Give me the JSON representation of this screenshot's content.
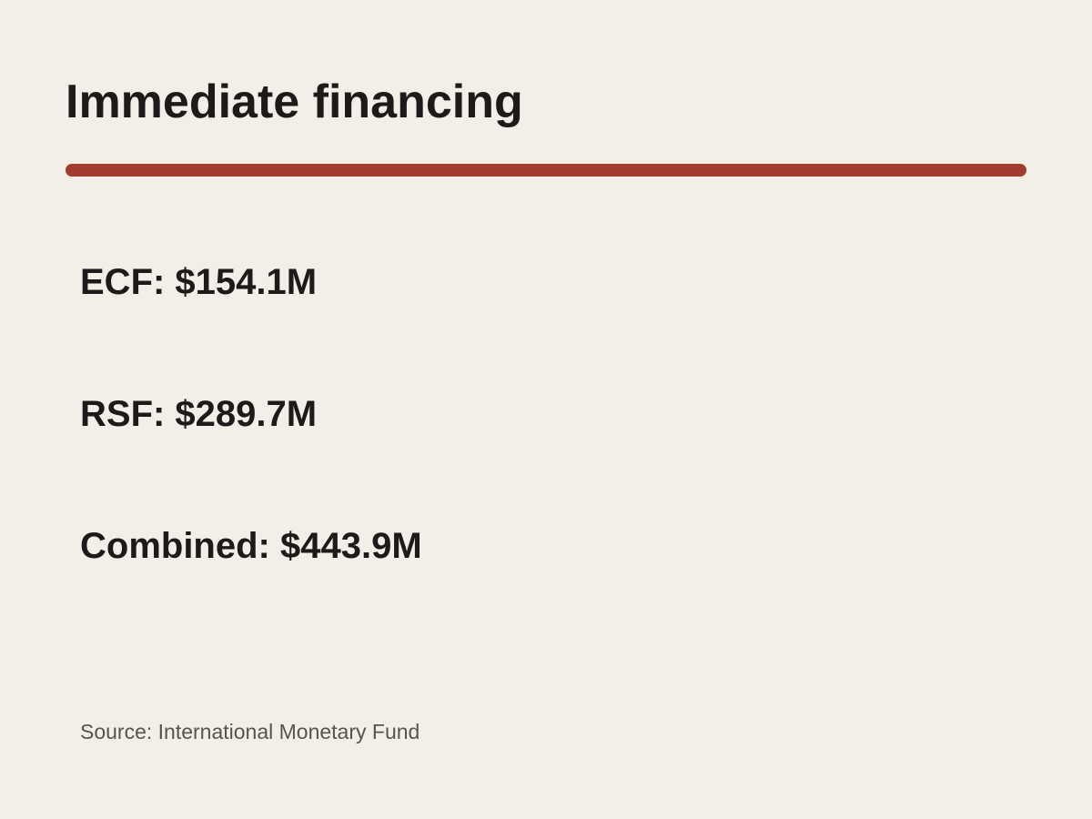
{
  "header": {
    "title": "Immediate financing"
  },
  "items": [
    "ECF: $154.1M",
    "RSF: $289.7M",
    "Combined: $443.9M"
  ],
  "footer": {
    "source": "Source: International Monetary Fund"
  }
}
